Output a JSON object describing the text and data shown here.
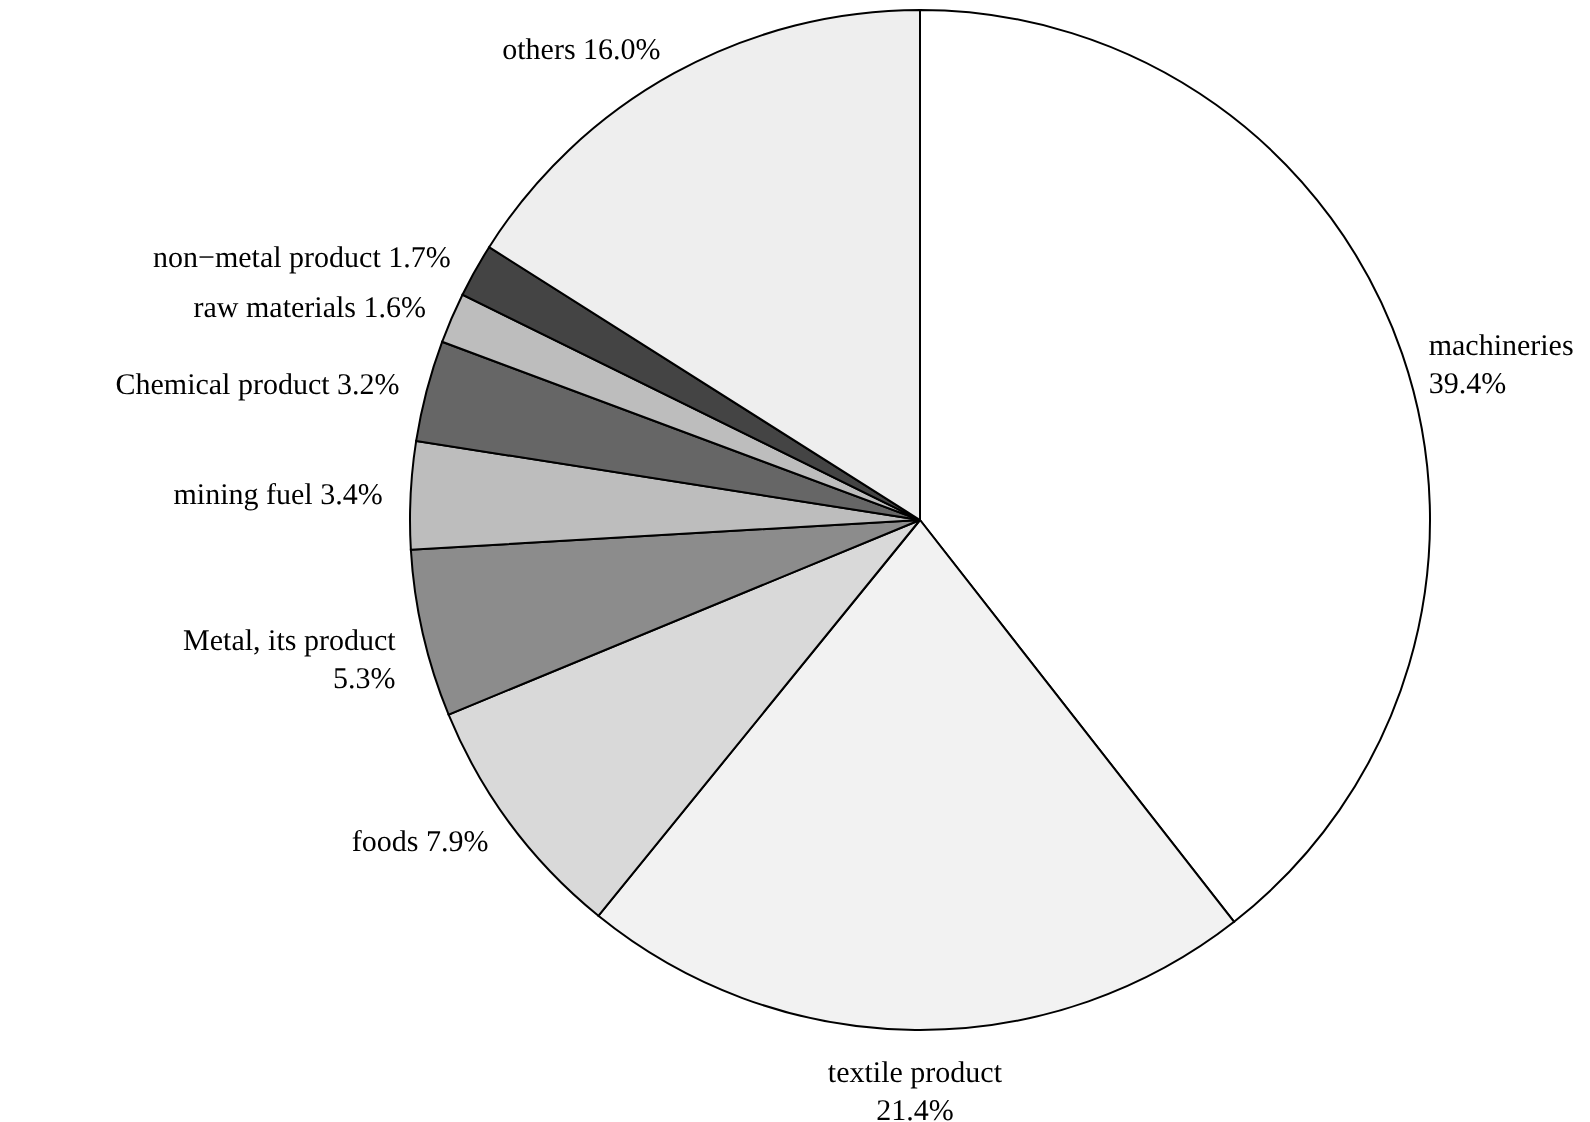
{
  "chart_data": {
    "type": "pie",
    "categories": [
      "machineries",
      "textile product",
      "foods",
      "Metal, its product",
      "mining fuel",
      "Chemical product",
      "raw materials",
      "non−metal product",
      "others"
    ],
    "values": [
      39.4,
      21.4,
      7.9,
      5.3,
      3.4,
      3.2,
      1.6,
      1.7,
      16.0
    ],
    "value_labels": [
      "39.4%",
      "21.4%",
      "7.9%",
      "5.3%",
      "3.4%",
      "3.2%",
      "1.6%",
      "1.7%",
      "16.0%"
    ],
    "colors": [
      "#ffffff",
      "#f2f2f2",
      "#d9d9d9",
      "#8c8c8c",
      "#bdbdbd",
      "#666666",
      "#bdbdbd",
      "#444444",
      "#eeeeee"
    ]
  }
}
